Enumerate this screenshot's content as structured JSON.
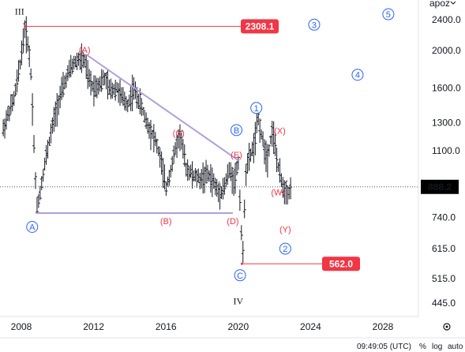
{
  "chart_data": {
    "type": "line",
    "title": "",
    "ylabel": "",
    "scale": "log",
    "grid": false,
    "currency_label": "apoz",
    "x_ticks": [
      "2008",
      "2012",
      "2016",
      "2020",
      "2024",
      "2028"
    ],
    "y_ticks": [
      "2400.0",
      "2000.0",
      "1600.0",
      "1300.0",
      "1100.0",
      "888.2",
      "740.0",
      "615.0",
      "515.0",
      "445.0"
    ],
    "last_price": "888.2",
    "price_levels": [
      {
        "label": "2308.1",
        "date": 2008.2,
        "value": 2308.1,
        "color": "#f23645"
      },
      {
        "label": "562.0",
        "date": 2020.2,
        "value": 562.0,
        "color": "#f23645"
      }
    ],
    "trend_lines": [
      {
        "from": [
          2011.6,
          1950
        ],
        "to": [
          2020.0,
          1040
        ],
        "color": "#b39ddb"
      },
      {
        "from": [
          2008.8,
          760
        ],
        "to": [
          2019.7,
          760
        ],
        "color": "#b39ddb"
      }
    ],
    "series": [
      {
        "x": [
          2007.0,
          2007.3,
          2007.6,
          2007.9,
          2008.0,
          2008.2,
          2008.4,
          2008.55,
          2008.7,
          2008.85,
          2009.0,
          2009.3,
          2009.6,
          2010.0,
          2010.3,
          2010.6,
          2010.9,
          2011.2,
          2011.5,
          2011.7,
          2012.0,
          2012.3,
          2012.6,
          2012.9,
          2013.3,
          2013.6,
          2013.9,
          2014.2,
          2014.6,
          2015.0,
          2015.4,
          2015.7,
          2016.0,
          2016.3,
          2016.6,
          2016.8,
          2017.1,
          2017.5,
          2017.9,
          2018.3,
          2018.6,
          2018.9,
          2019.2,
          2019.5,
          2019.8,
          2020.0,
          2020.15,
          2020.25,
          2020.4,
          2020.6,
          2020.9,
          2021.1,
          2021.3,
          2021.6,
          2021.9,
          2022.2,
          2022.5,
          2022.8,
          2022.95
        ],
        "values": [
          1250,
          1380,
          1500,
          1800,
          1950,
          2300,
          2050,
          1700,
          1150,
          780,
          840,
          1020,
          1200,
          1450,
          1600,
          1750,
          1850,
          1900,
          1880,
          1700,
          1600,
          1640,
          1700,
          1580,
          1600,
          1500,
          1450,
          1600,
          1450,
          1280,
          1180,
          1050,
          880,
          1000,
          1150,
          1220,
          1000,
          950,
          930,
          960,
          920,
          860,
          880,
          980,
          920,
          1040,
          720,
          570,
          960,
          1050,
          1150,
          1340,
          1200,
          1050,
          1260,
          1000,
          880,
          860,
          880
        ]
      }
    ],
    "annotations": [
      {
        "label": "III",
        "kind": "roman",
        "date": 2007.9,
        "value": 2520
      },
      {
        "label": "IV",
        "kind": "roman",
        "date": 2020.0,
        "value": 450
      },
      {
        "label": "(A)",
        "kind": "red",
        "date": 2011.5,
        "value": 2010
      },
      {
        "label": "(B)",
        "kind": "red",
        "date": 2016.0,
        "value": 725
      },
      {
        "label": "(C)",
        "kind": "red",
        "date": 2016.7,
        "value": 1225
      },
      {
        "label": "(D)",
        "kind": "red",
        "date": 2019.7,
        "value": 725
      },
      {
        "label": "(E)",
        "kind": "red",
        "date": 2019.9,
        "value": 1075
      },
      {
        "label": "(W)",
        "kind": "red",
        "date": 2022.2,
        "value": 860
      },
      {
        "label": "(X)",
        "kind": "red",
        "date": 2022.3,
        "value": 1240
      },
      {
        "label": "(Y)",
        "kind": "red",
        "date": 2022.6,
        "value": 690
      },
      {
        "label": "A",
        "kind": "circle",
        "date": 2008.6,
        "value": 700
      },
      {
        "label": "B",
        "kind": "circle",
        "date": 2019.9,
        "value": 1245
      },
      {
        "label": "C",
        "kind": "circle",
        "date": 2020.1,
        "value": 525
      },
      {
        "label": "1",
        "kind": "circle",
        "date": 2021.0,
        "value": 1420
      },
      {
        "label": "2",
        "kind": "circle",
        "date": 2022.6,
        "value": 615
      },
      {
        "label": "3",
        "kind": "circle",
        "date": 2024.2,
        "value": 2330
      },
      {
        "label": "4",
        "kind": "circle",
        "date": 2026.6,
        "value": 1730
      },
      {
        "label": "5",
        "kind": "circle",
        "date": 2028.3,
        "value": 2480
      }
    ]
  },
  "footer": {
    "time": "09:49:05 (UTC)",
    "percent": "%",
    "log": "log",
    "auto": "auto"
  },
  "colors": {
    "red": "#f23645",
    "blue": "#2962ff",
    "trend": "#b39ddb",
    "ink": "#131722",
    "grid_line": "#e0e3eb"
  },
  "icons": [
    "settings-icon",
    "chevron-down-icon"
  ]
}
